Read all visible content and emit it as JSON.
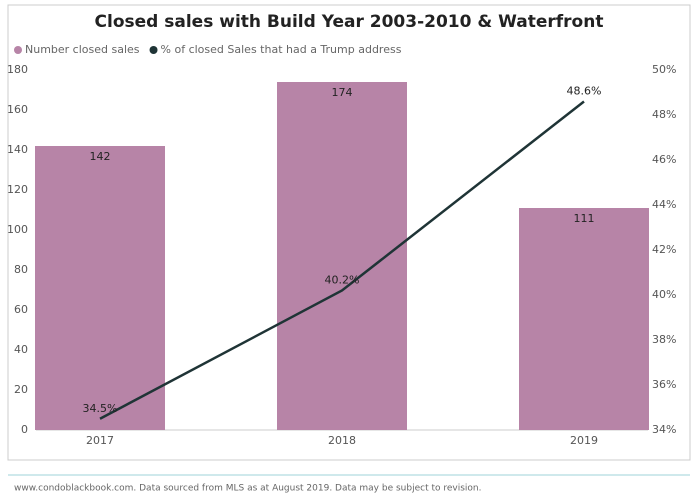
{
  "chart_data": {
    "type": "combo",
    "title": "Closed sales with Build Year 2003-2010 & Waterfront",
    "categories": [
      "2017",
      "2018",
      "2019"
    ],
    "series": [
      {
        "name": "Number closed sales",
        "type": "bar",
        "color": "#b784a7",
        "values": [
          142,
          174,
          111
        ]
      },
      {
        "name": "% of closed Sales that had a Trump address",
        "type": "line",
        "axis": "y2",
        "color": "#1f3436",
        "values": [
          34.5,
          40.2,
          48.6
        ],
        "value_labels": [
          "34.5%",
          "40.2%",
          "48.6%"
        ]
      }
    ],
    "ylim": [
      0,
      180
    ],
    "yticks": [
      0,
      20,
      40,
      60,
      80,
      100,
      120,
      140,
      160,
      180
    ],
    "y2lim": [
      34,
      50
    ],
    "y2ticks": [
      {
        "value": 34,
        "label": "34%"
      },
      {
        "value": 36,
        "label": "36%"
      },
      {
        "value": 38,
        "label": "38%"
      },
      {
        "value": 40,
        "label": "40%"
      },
      {
        "value": 42,
        "label": "42%"
      },
      {
        "value": 44,
        "label": "44%"
      },
      {
        "value": 46,
        "label": "46%"
      },
      {
        "value": 48,
        "label": "48%"
      },
      {
        "value": 50,
        "label": "50%"
      }
    ],
    "source": "www.condoblackbook.com. Data sourced from MLS as at August 2019. Data may be subject to revision."
  }
}
